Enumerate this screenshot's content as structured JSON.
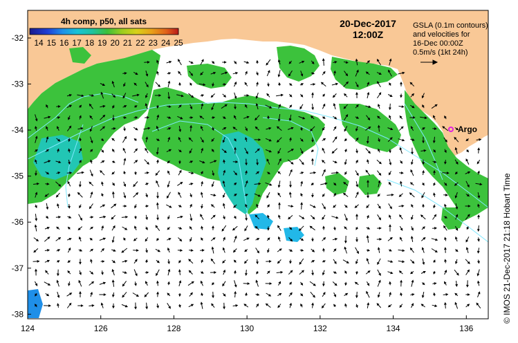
{
  "legend": {
    "title": "4h comp, p50, all sats",
    "ticks": [
      "14",
      "15",
      "16",
      "17",
      "18",
      "19",
      "20",
      "21",
      "22",
      "23",
      "24",
      "25"
    ],
    "colors": [
      "#1a1a8c",
      "#1f3fd6",
      "#1f8fe8",
      "#18c3d6",
      "#1fc3a0",
      "#27b35a",
      "#4cbf2a",
      "#9ccd1e",
      "#d8d01a",
      "#e8a01a",
      "#e0601a",
      "#b81a1a"
    ]
  },
  "header": {
    "date": "20-Dec-2017",
    "time": "12:00Z"
  },
  "info": {
    "line1": "GSLA (0.1m contours)",
    "line2": "and velocities for",
    "line3": "16-Dec 00:00Z",
    "line4": "0.5m/s (1kt 24h)"
  },
  "marker": {
    "label": "Argo",
    "color": "#e020e0"
  },
  "credit": "©  IMOS 21-Dec-2017 21:18 Hobart Time",
  "axes": {
    "x_ticks": [
      "124",
      "126",
      "128",
      "130",
      "132",
      "134",
      "136"
    ],
    "y_ticks": [
      "-32",
      "-33",
      "-34",
      "-35",
      "-36",
      "-37",
      "-38"
    ]
  },
  "colors": {
    "land": "#f9c896",
    "ocean_no_data": "#ffffff",
    "sst_green": "#3cc23c",
    "sst_cyan": "#22c6b4",
    "contour": "#7fe8ff",
    "arrow": "#000000"
  }
}
